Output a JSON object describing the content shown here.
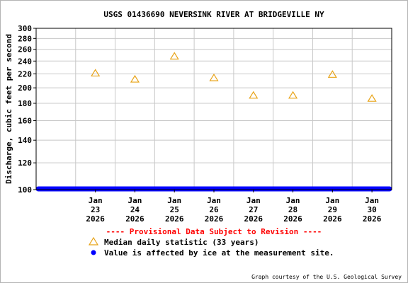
{
  "chart_data": {
    "type": "scatter",
    "title": "USGS 01436690 NEVERSINK RIVER AT BRIDGEVILLE NY",
    "ylabel": "Discharge, cubic feet per second",
    "xlabel": "",
    "y_scale": "log",
    "ylim": [
      100,
      300
    ],
    "y_ticks": [
      100,
      120,
      140,
      160,
      180,
      200,
      220,
      240,
      260,
      280,
      300
    ],
    "x_ticks": [
      {
        "month": "Jan",
        "day": "23",
        "year": "2026"
      },
      {
        "month": "Jan",
        "day": "24",
        "year": "2026"
      },
      {
        "month": "Jan",
        "day": "25",
        "year": "2026"
      },
      {
        "month": "Jan",
        "day": "26",
        "year": "2026"
      },
      {
        "month": "Jan",
        "day": "27",
        "year": "2026"
      },
      {
        "month": "Jan",
        "day": "28",
        "year": "2026"
      },
      {
        "month": "Jan",
        "day": "29",
        "year": "2026"
      },
      {
        "month": "Jan",
        "day": "30",
        "year": "2026"
      }
    ],
    "xlim": [
      "2026-01-22",
      "2026-01-30"
    ],
    "grid": true,
    "series": [
      {
        "name": "Median daily statistic (33 years)",
        "marker": "triangle",
        "color": "#e8a317",
        "points": [
          {
            "x": "2026-01-23",
            "y": 221
          },
          {
            "x": "2026-01-24",
            "y": 212
          },
          {
            "x": "2026-01-25",
            "y": 248
          },
          {
            "x": "2026-01-26",
            "y": 214
          },
          {
            "x": "2026-01-27",
            "y": 190
          },
          {
            "x": "2026-01-28",
            "y": 190
          },
          {
            "x": "2026-01-29",
            "y": 219
          },
          {
            "x": "2026-01-30",
            "y": 186
          }
        ]
      },
      {
        "name": "Value is affected by ice at the measurement site.",
        "marker": "circle",
        "color": "#0000ff",
        "points": [
          {
            "x": "2026-01-22",
            "y": 100
          },
          {
            "x": "2026-01-30",
            "y": 100
          }
        ]
      }
    ],
    "annotations": {
      "provisional": "---- Provisional Data Subject to Revision ----",
      "credit": "Graph courtesy of the U.S. Geological Survey"
    },
    "legend_position": "bottom-left"
  }
}
